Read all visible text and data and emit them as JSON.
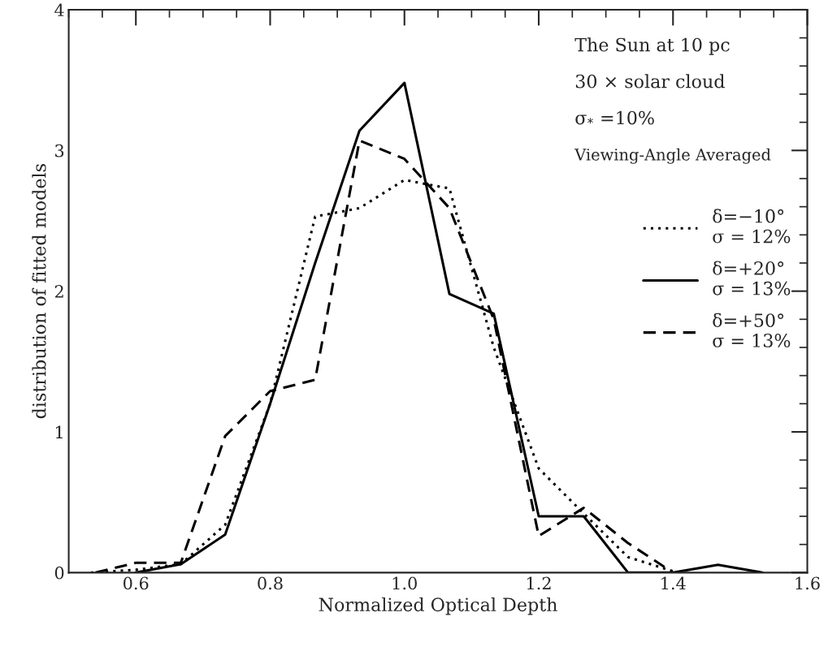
{
  "chart_data": {
    "type": "line",
    "xlabel": "Normalized Optical Depth",
    "ylabel": "distribution of fitted models",
    "xlim": [
      0.5,
      1.6
    ],
    "xticks": [
      0.6,
      0.8,
      {
        "value": 1.0,
        "label": "1.0"
      },
      1.2,
      1.4,
      1.6
    ],
    "ylim": [
      0,
      4
    ],
    "yticks": [
      0,
      1,
      2,
      3,
      4
    ],
    "grid": false,
    "legend": "right",
    "annotations": [
      "The Sun at 10 pc",
      "30 × solar cloud",
      "σ$_{*}$ =10%",
      "Viewing-Angle Averaged"
    ],
    "series": [
      {
        "name": "δ=−10°\nσ = 12%",
        "color": "#000000",
        "line_style": "dotted",
        "x": [
          0.533,
          0.6,
          0.667,
          0.733,
          0.8,
          0.867,
          0.933,
          1.0,
          1.067,
          1.133,
          1.2,
          1.267,
          1.333,
          1.4
        ],
        "values": [
          0,
          0.02,
          0.06,
          0.34,
          1.2,
          2.53,
          2.59,
          2.79,
          2.73,
          1.6,
          0.74,
          0.42,
          0.11,
          0.01
        ]
      },
      {
        "name": "δ=+20°\nσ = 13%",
        "color": "#000000",
        "line_style": "solid",
        "x": [
          0.6,
          0.667,
          0.733,
          0.8,
          0.867,
          0.933,
          1.0,
          1.067,
          1.133,
          1.2,
          1.267,
          1.333,
          1.4,
          1.467,
          1.533
        ],
        "values": [
          0,
          0.06,
          0.27,
          1.2,
          2.2,
          3.14,
          3.48,
          1.98,
          1.84,
          0.4,
          0.4,
          0,
          0,
          0.055,
          0
        ]
      },
      {
        "name": "δ=+50°\nσ = 13%",
        "color": "#000000",
        "line_style": "dashed",
        "x": [
          0.54,
          0.6,
          0.667,
          0.733,
          0.8,
          0.867,
          0.933,
          1.0,
          1.067,
          1.133,
          1.2,
          1.267,
          1.333,
          1.4
        ],
        "values": [
          0,
          0.07,
          0.07,
          0.97,
          1.29,
          1.37,
          3.07,
          2.94,
          2.59,
          1.8,
          0.26,
          0.46,
          0.21,
          0
        ]
      }
    ]
  }
}
